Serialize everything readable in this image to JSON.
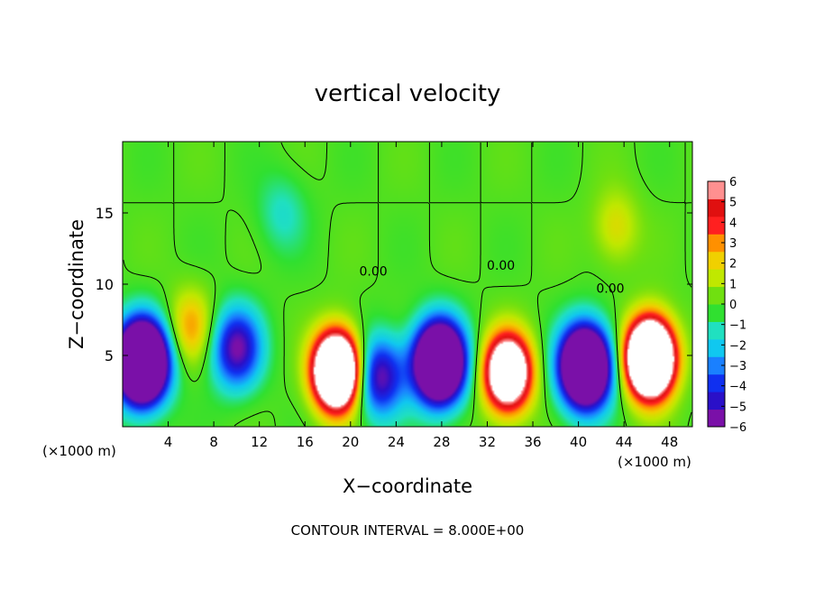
{
  "chart_data": {
    "type": "heatmap",
    "title": "vertical velocity",
    "xlabel": "X−coordinate",
    "ylabel": "Z−coordinate",
    "x_unit": "(×1000 m)",
    "z_unit": "(×1000 m)",
    "footer": "CONTOUR INTERVAL = 8.000E+00",
    "xlim": [
      0,
      50
    ],
    "ylim": [
      0,
      20
    ],
    "x_ticks": [
      "4",
      "8",
      "12",
      "16",
      "20",
      "24",
      "28",
      "32",
      "36",
      "40",
      "44",
      "48"
    ],
    "y_ticks": [
      "5",
      "10",
      "15"
    ],
    "colorbar": {
      "min": -6,
      "max": 6,
      "ticks": [
        "6",
        "5",
        "4",
        "3",
        "2",
        "1",
        "0",
        "−1",
        "−2",
        "−3",
        "−4",
        "−5",
        "−6"
      ],
      "colors": [
        "#7a10a8",
        "#2a10c8",
        "#1030f0",
        "#1a80ff",
        "#10c8f0",
        "#20e0c0",
        "#30e030",
        "#70e010",
        "#c0e800",
        "#f0d000",
        "#ff9000",
        "#ff2020",
        "#e01010",
        "#ff9090"
      ]
    },
    "contour_labels": [
      "0.00",
      "0.00",
      "0.00"
    ],
    "features": [
      {
        "kind": "updraft",
        "x": 18.8,
        "z": 3.9,
        "peak": 16
      },
      {
        "kind": "updraft",
        "x": 33.8,
        "z": 3.8,
        "peak": 12
      },
      {
        "kind": "updraft",
        "x": 46.3,
        "z": 4.8,
        "peak": 18
      },
      {
        "kind": "updraft",
        "x": 6.0,
        "z": 7.0,
        "peak": 3
      },
      {
        "kind": "updraft",
        "x": 43.3,
        "z": 14.0,
        "peak": 2
      },
      {
        "kind": "downdraft",
        "x": 1.7,
        "z": 4.5,
        "peak": -16
      },
      {
        "kind": "downdraft",
        "x": 27.8,
        "z": 4.5,
        "peak": -14
      },
      {
        "kind": "downdraft",
        "x": 40.6,
        "z": 4.2,
        "peak": -14
      },
      {
        "kind": "downdraft",
        "x": 10.0,
        "z": 5.5,
        "peak": -6
      },
      {
        "kind": "downdraft",
        "x": 22.5,
        "z": 3.5,
        "peak": -6
      },
      {
        "kind": "downdraft",
        "x": 14.0,
        "z": 15.0,
        "peak": -1.5
      }
    ]
  }
}
